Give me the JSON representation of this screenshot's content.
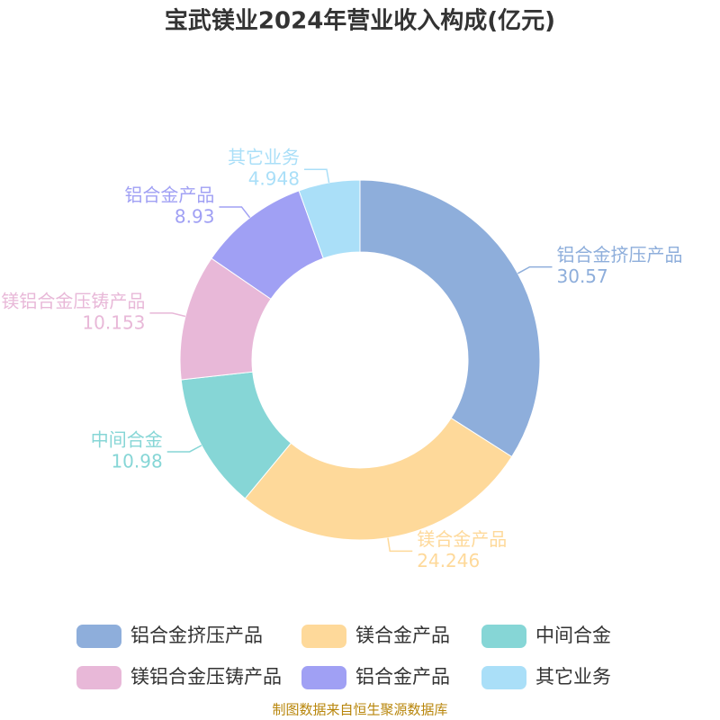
{
  "chart_data": {
    "type": "donut",
    "title": "宝武镁业2024年营业收入构成(亿元)",
    "categories": [
      "铝合金挤压产品",
      "镁合金产品",
      "中间合金",
      "镁铝合金压铸产品",
      "铝合金产品",
      "其它业务"
    ],
    "values": [
      30.57,
      24.246,
      10.98,
      10.153,
      8.93,
      4.948
    ],
    "colors": [
      "#8eaedb",
      "#fed99a",
      "#86d6d6",
      "#e8b8d8",
      "#a0a0f4",
      "#aadff8"
    ],
    "source": "制图数据来自恒生聚源数据库"
  }
}
